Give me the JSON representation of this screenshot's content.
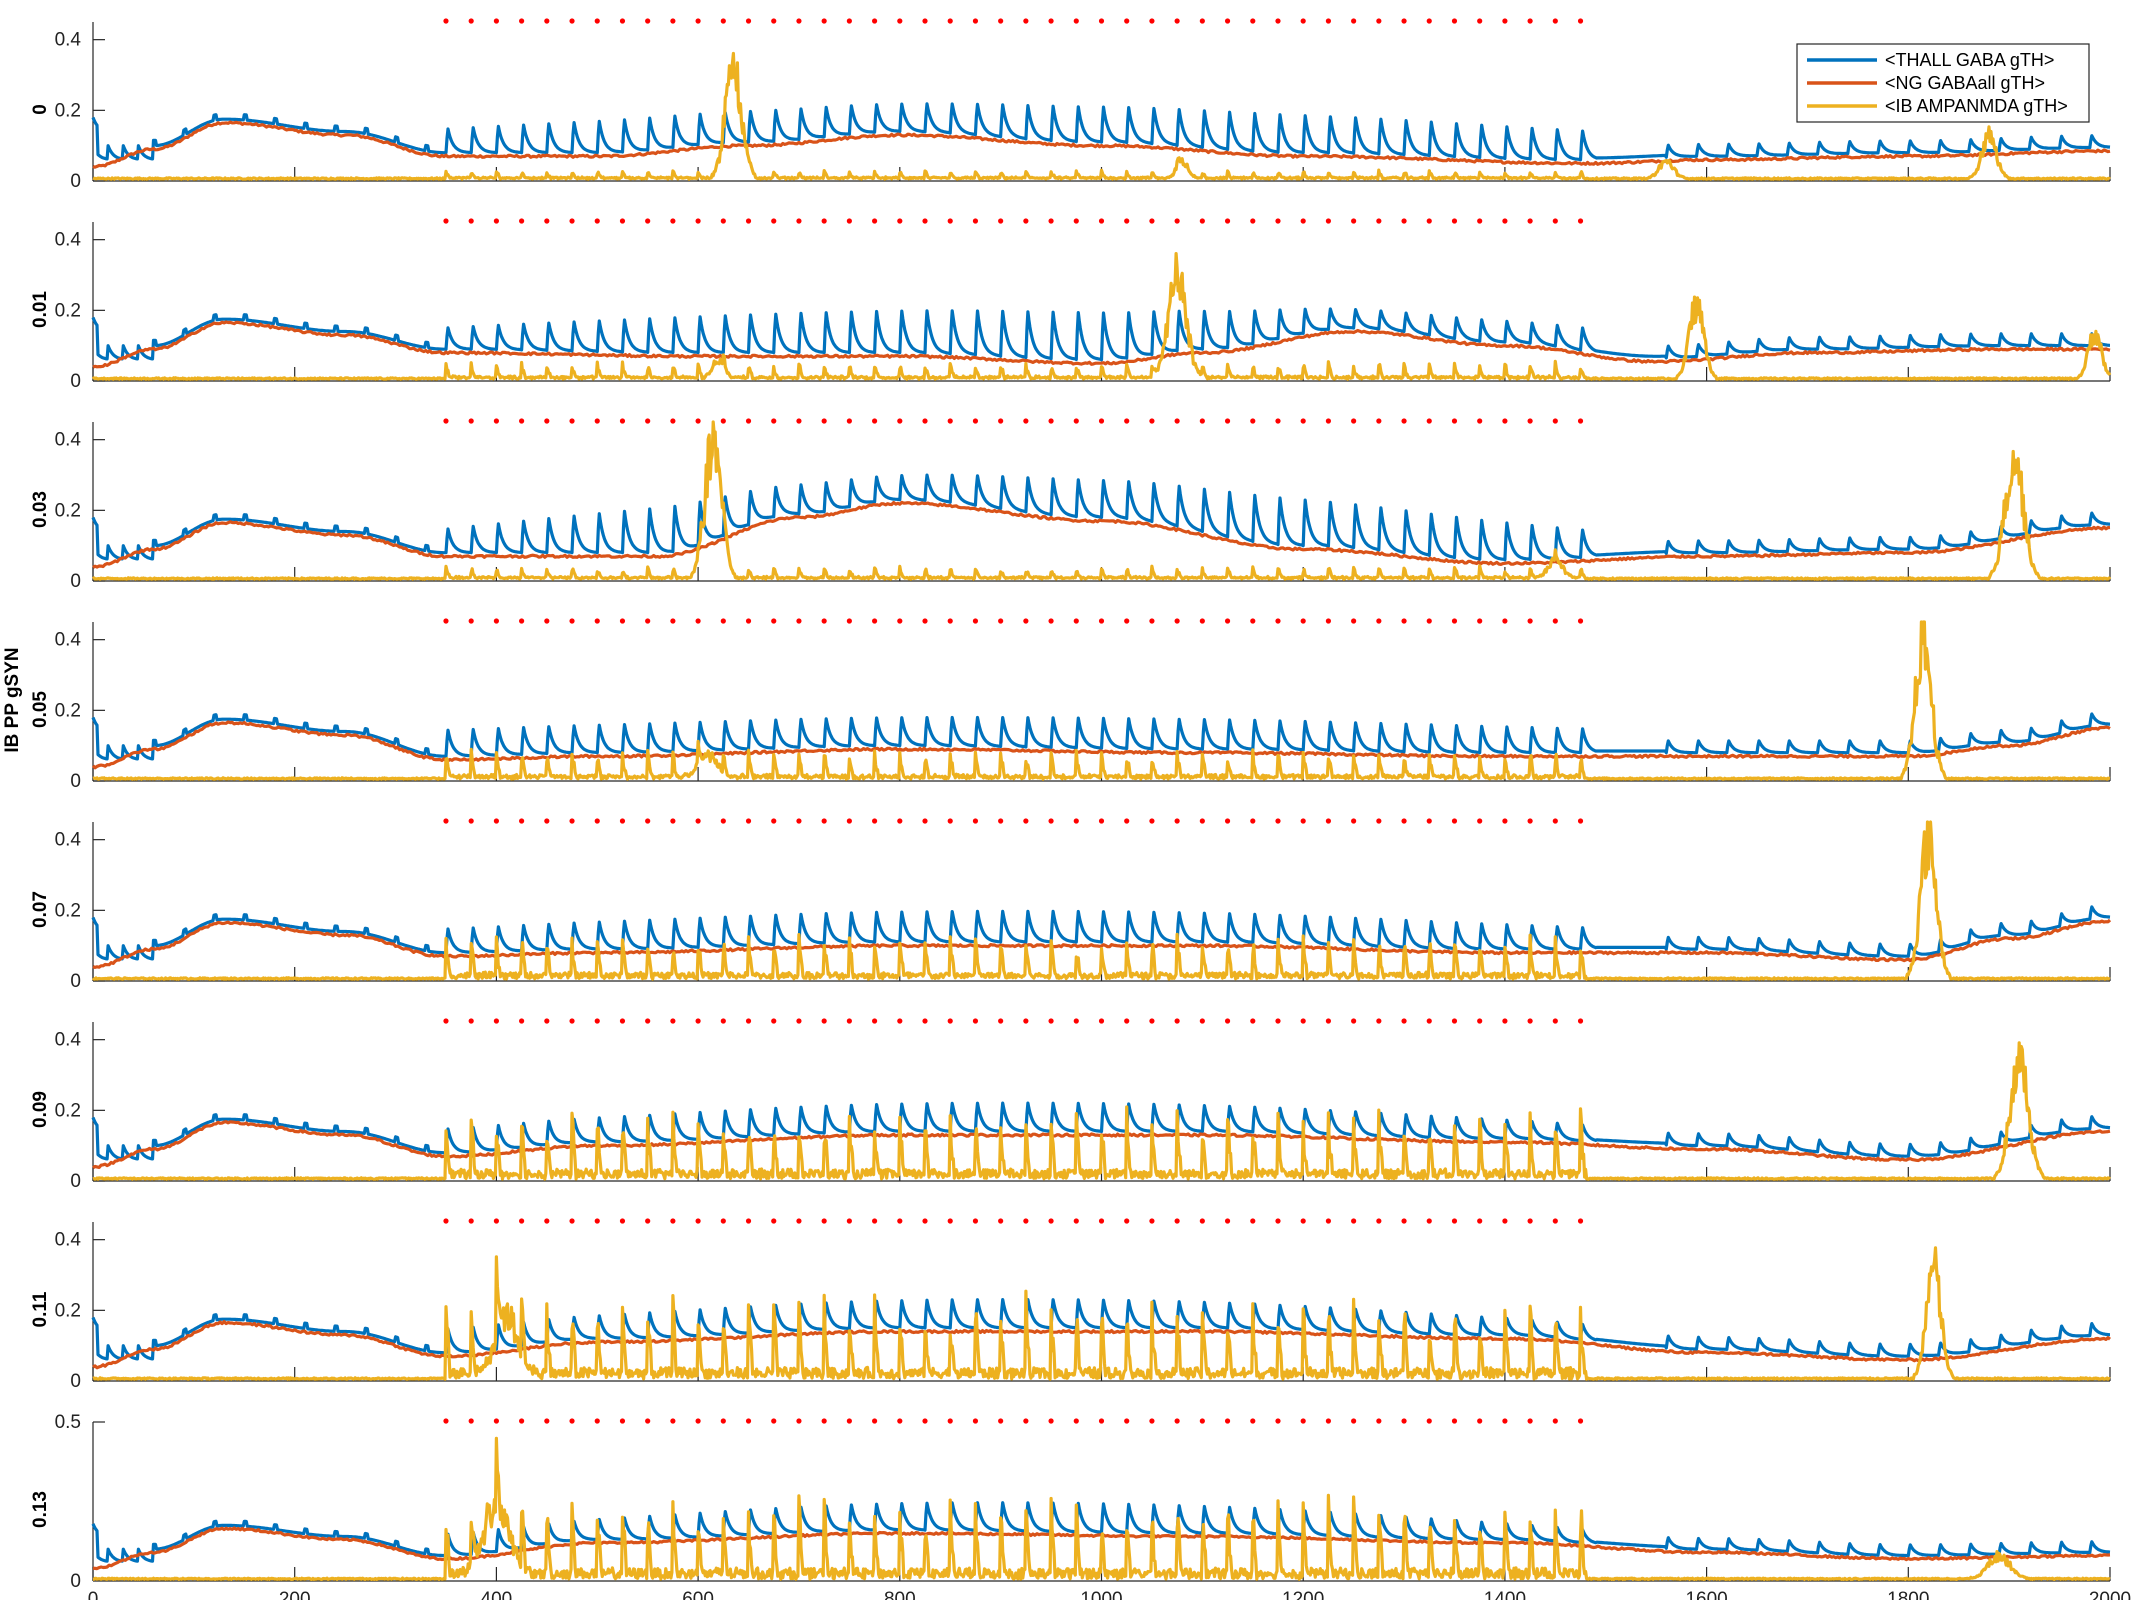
{
  "chart_data": {
    "type": "line",
    "ylabel": "IB PP gSYN",
    "xlim": [
      0,
      2000
    ],
    "x_ticks": [
      "0",
      "200",
      "400",
      "600",
      "800",
      "1000",
      "1200",
      "1400",
      "1600",
      "1800",
      "2000"
    ],
    "legend": {
      "placement": "top-right",
      "entries": [
        "<THALL GABA gTH>",
        "<NG GABAall gTH>",
        "<IB AMPANMDA gTH>"
      ]
    },
    "colors": {
      "thall": "#0072BD",
      "ng": "#D95319",
      "ib": "#EDB120",
      "dots": "#FF0000"
    },
    "stimulus_dots": {
      "start": 350,
      "end": 1480,
      "period": 25
    },
    "thall_pulses": {
      "start": 350,
      "end": 1480,
      "period": 25
    },
    "panels": [
      {
        "label": "0",
        "ylim": [
          0,
          0.45
        ],
        "y_ticks": [
          "0",
          "0.2",
          "0.4"
        ],
        "ng_points": [
          [
            0,
            0.04
          ],
          [
            60,
            0.09
          ],
          [
            130,
            0.165
          ],
          [
            250,
            0.13
          ],
          [
            350,
            0.07
          ],
          [
            500,
            0.07
          ],
          [
            650,
            0.1
          ],
          [
            800,
            0.13
          ],
          [
            1000,
            0.1
          ],
          [
            1200,
            0.07
          ],
          [
            1480,
            0.05
          ],
          [
            1600,
            0.06
          ],
          [
            1800,
            0.07
          ],
          [
            2000,
            0.085
          ]
        ],
        "thall_base": 0.12,
        "thall_peak": [
          0.17,
          0.25
        ],
        "ib_bursts": [
          {
            "t": 635,
            "amp": 0.39,
            "width": 22
          },
          {
            "t": 1080,
            "amp": 0.06,
            "width": 15
          },
          {
            "t": 1560,
            "amp": 0.06,
            "width": 20
          },
          {
            "t": 1880,
            "amp": 0.15,
            "width": 20
          }
        ],
        "ib_spike_amp": 0.02
      },
      {
        "label": "0.01",
        "ylim": [
          0,
          0.45
        ],
        "y_ticks": [
          "0",
          "0.2",
          "0.4"
        ],
        "ng_points": [
          [
            0,
            0.04
          ],
          [
            60,
            0.09
          ],
          [
            130,
            0.165
          ],
          [
            250,
            0.13
          ],
          [
            350,
            0.08
          ],
          [
            600,
            0.07
          ],
          [
            800,
            0.07
          ],
          [
            1000,
            0.05
          ],
          [
            1100,
            0.08
          ],
          [
            1250,
            0.14
          ],
          [
            1400,
            0.1
          ],
          [
            1550,
            0.055
          ],
          [
            1700,
            0.08
          ],
          [
            1900,
            0.09
          ],
          [
            2000,
            0.09
          ]
        ],
        "thall_base": 0.12,
        "thall_peak": [
          0.17,
          0.25
        ],
        "ib_bursts": [
          {
            "t": 1075,
            "amp": 0.35,
            "width": 25
          },
          {
            "t": 1590,
            "amp": 0.26,
            "width": 20
          },
          {
            "t": 1985,
            "amp": 0.16,
            "width": 18
          },
          {
            "t": 620,
            "amp": 0.06,
            "width": 15
          }
        ],
        "ib_spike_amp": 0.04
      },
      {
        "label": "0.03",
        "ylim": [
          0,
          0.45
        ],
        "y_ticks": [
          "0",
          "0.2",
          "0.4"
        ],
        "ng_points": [
          [
            0,
            0.04
          ],
          [
            60,
            0.09
          ],
          [
            130,
            0.165
          ],
          [
            250,
            0.13
          ],
          [
            350,
            0.07
          ],
          [
            560,
            0.07
          ],
          [
            700,
            0.18
          ],
          [
            800,
            0.22
          ],
          [
            1000,
            0.17
          ],
          [
            1200,
            0.09
          ],
          [
            1400,
            0.05
          ],
          [
            1600,
            0.07
          ],
          [
            1800,
            0.08
          ],
          [
            2000,
            0.15
          ]
        ],
        "thall_base": 0.12,
        "thall_peak": [
          0.17,
          0.33
        ],
        "ib_bursts": [
          {
            "t": 615,
            "amp": 0.49,
            "width": 22
          },
          {
            "t": 1905,
            "amp": 0.43,
            "width": 25
          },
          {
            "t": 1450,
            "amp": 0.06,
            "width": 20
          }
        ],
        "ib_spike_amp": 0.03
      },
      {
        "label": "0.05",
        "ylim": [
          0,
          0.45
        ],
        "y_ticks": [
          "0",
          "0.2",
          "0.4"
        ],
        "ng_points": [
          [
            0,
            0.04
          ],
          [
            60,
            0.09
          ],
          [
            130,
            0.165
          ],
          [
            250,
            0.13
          ],
          [
            350,
            0.06
          ],
          [
            500,
            0.07
          ],
          [
            800,
            0.09
          ],
          [
            1100,
            0.08
          ],
          [
            1400,
            0.07
          ],
          [
            1600,
            0.07
          ],
          [
            1800,
            0.07
          ],
          [
            1900,
            0.1
          ],
          [
            2000,
            0.15
          ]
        ],
        "thall_base": 0.12,
        "thall_peak": [
          0.17,
          0.21
        ],
        "ib_bursts": [
          {
            "t": 1815,
            "amp": 0.49,
            "width": 22
          },
          {
            "t": 610,
            "amp": 0.08,
            "width": 25
          }
        ],
        "ib_spike_amp": 0.07
      },
      {
        "label": "0.07",
        "ylim": [
          0,
          0.45
        ],
        "y_ticks": [
          "0",
          "0.2",
          "0.4"
        ],
        "ng_points": [
          [
            0,
            0.04
          ],
          [
            60,
            0.09
          ],
          [
            130,
            0.165
          ],
          [
            250,
            0.13
          ],
          [
            350,
            0.07
          ],
          [
            500,
            0.08
          ],
          [
            800,
            0.1
          ],
          [
            1100,
            0.1
          ],
          [
            1400,
            0.08
          ],
          [
            1600,
            0.08
          ],
          [
            1800,
            0.06
          ],
          [
            1900,
            0.12
          ],
          [
            2000,
            0.17
          ]
        ],
        "thall_base": 0.12,
        "thall_peak": [
          0.17,
          0.23
        ],
        "ib_bursts": [
          {
            "t": 1820,
            "amp": 0.49,
            "width": 22
          }
        ],
        "ib_spike_amp": 0.11
      },
      {
        "label": "0.09",
        "ylim": [
          0,
          0.45
        ],
        "y_ticks": [
          "0",
          "0.2",
          "0.4"
        ],
        "ng_points": [
          [
            0,
            0.04
          ],
          [
            60,
            0.09
          ],
          [
            130,
            0.165
          ],
          [
            250,
            0.13
          ],
          [
            350,
            0.07
          ],
          [
            500,
            0.1
          ],
          [
            800,
            0.13
          ],
          [
            1100,
            0.13
          ],
          [
            1400,
            0.11
          ],
          [
            1600,
            0.09
          ],
          [
            1800,
            0.06
          ],
          [
            2000,
            0.14
          ]
        ],
        "thall_base": 0.12,
        "thall_peak": [
          0.17,
          0.25
        ],
        "ib_bursts": [
          {
            "t": 1910,
            "amp": 0.41,
            "width": 25
          }
        ],
        "ib_spike_amp": 0.17
      },
      {
        "label": "0.11",
        "ylim": [
          0,
          0.45
        ],
        "y_ticks": [
          "0",
          "0.2",
          "0.4"
        ],
        "ng_points": [
          [
            0,
            0.04
          ],
          [
            60,
            0.09
          ],
          [
            130,
            0.165
          ],
          [
            250,
            0.13
          ],
          [
            350,
            0.07
          ],
          [
            500,
            0.11
          ],
          [
            800,
            0.14
          ],
          [
            1100,
            0.14
          ],
          [
            1400,
            0.12
          ],
          [
            1600,
            0.08
          ],
          [
            1800,
            0.06
          ],
          [
            2000,
            0.12
          ]
        ],
        "thall_base": 0.12,
        "thall_peak": [
          0.17,
          0.26
        ],
        "ib_bursts": [
          {
            "t": 1825,
            "amp": 0.39,
            "width": 20
          },
          {
            "t": 410,
            "amp": 0.2,
            "width": 30
          }
        ],
        "ib_spike_amp": 0.2
      },
      {
        "label": "0.13",
        "ylim": [
          0,
          0.5
        ],
        "y_ticks": [
          "0.5"
        ],
        "ng_points": [
          [
            0,
            0.04
          ],
          [
            60,
            0.09
          ],
          [
            130,
            0.165
          ],
          [
            250,
            0.13
          ],
          [
            350,
            0.07
          ],
          [
            500,
            0.12
          ],
          [
            800,
            0.15
          ],
          [
            1100,
            0.14
          ],
          [
            1400,
            0.12
          ],
          [
            1600,
            0.09
          ],
          [
            1800,
            0.07
          ],
          [
            2000,
            0.08
          ]
        ],
        "thall_base": 0.12,
        "thall_peak": [
          0.17,
          0.28
        ],
        "ib_bursts": [
          {
            "t": 400,
            "amp": 0.28,
            "width": 35
          },
          {
            "t": 1890,
            "amp": 0.09,
            "width": 30
          }
        ],
        "ib_spike_amp": 0.22
      }
    ]
  }
}
